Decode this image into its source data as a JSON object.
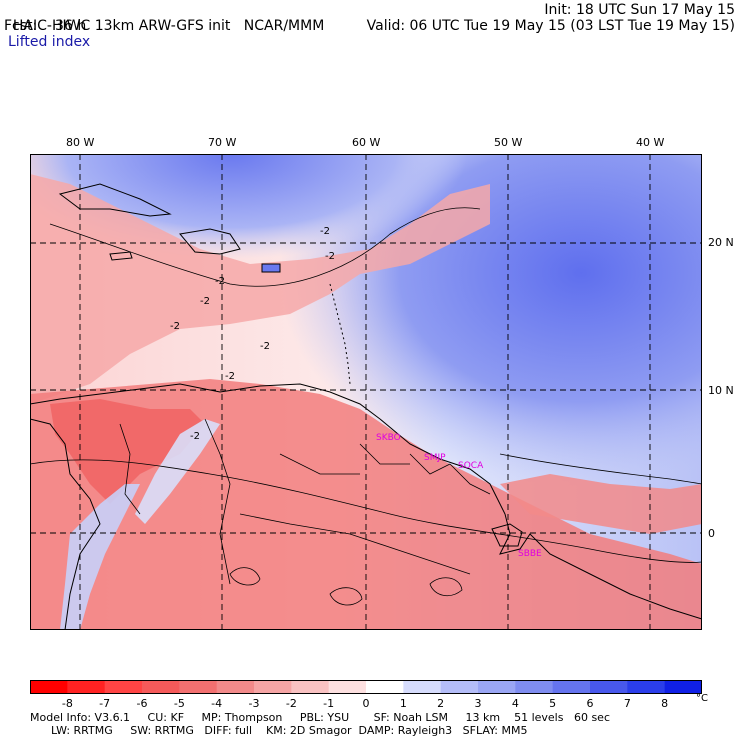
{
  "header": {
    "model": "HAIC-HIWC 13km ARW-GFS init",
    "org": "NCAR/MMM",
    "forecast": "Fcst:    36 h",
    "field": "Lifted index",
    "init": "Init: 18 UTC Sun 17 May 15",
    "valid": "Valid: 06 UTC Tue 19 May 15 (03 LST Tue 19 May 15)"
  },
  "map": {
    "lon_labels": [
      "80 W",
      "70 W",
      "60 W",
      "50 W",
      "40 W"
    ],
    "lat_labels": [
      "20 N",
      "10 N",
      "0"
    ],
    "stations": [
      "SKBO",
      "SMJP",
      "SOCA",
      "SBBE"
    ],
    "contour_labels": [
      "-2",
      "-2",
      "-2",
      "-2",
      "-2",
      "-2",
      "-2",
      "-2"
    ]
  },
  "legend": {
    "labels": [
      "-8",
      "-7",
      "-6",
      "-5",
      "-4",
      "-3",
      "-2",
      "-1",
      "0",
      "1",
      "2",
      "3",
      "4",
      "5",
      "6",
      "7",
      "8"
    ],
    "unit": "°C",
    "colors": [
      "#ff0000",
      "#ff2222",
      "#ff4444",
      "#f55a5a",
      "#f27070",
      "#f28a8a",
      "#f6a5a5",
      "#f9c2c2",
      "#fde0e0",
      "#ffffff",
      "#d6dcfc",
      "#b4bdf8",
      "#9aa6f4",
      "#7f8df0",
      "#6574ee",
      "#4858ec",
      "#2b3eea",
      "#1020e6"
    ]
  },
  "model_info": {
    "line1": "Model Info: V3.6.1     CU: KF     MP: Thompson     PBL: YSU       SF: Noah LSM     13 km    51 levels   60 sec",
    "line2": "      LW: RRTMG     SW: RRTMG   DIFF: full    KM: 2D Smagor  DAMP: Rayleigh3   SFLAY: MM5"
  }
}
